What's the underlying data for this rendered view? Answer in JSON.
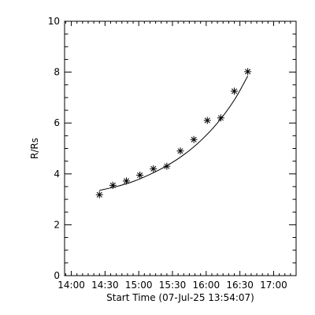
{
  "chart_data": {
    "type": "scatter",
    "title": "",
    "xlabel": "Start Time (07-Jul-25 13:54:07)",
    "ylabel": "R/Rs",
    "x_unit": "hours",
    "xlim": [
      "13:54",
      "17:20"
    ],
    "ylim": [
      0,
      10
    ],
    "x_ticks": [
      "14:00",
      "14:30",
      "15:00",
      "15:30",
      "16:00",
      "16:30",
      "17:00"
    ],
    "y_ticks": [
      "0",
      "2",
      "4",
      "6",
      "8",
      "10"
    ],
    "grid": false,
    "marker": "asterisk",
    "series": [
      {
        "points": [
          {
            "x": "14:25",
            "y": 3.18
          },
          {
            "x": "14:37",
            "y": 3.55
          },
          {
            "x": "14:49",
            "y": 3.72
          },
          {
            "x": "15:01",
            "y": 3.95
          },
          {
            "x": "15:13",
            "y": 4.2
          },
          {
            "x": "15:25",
            "y": 4.3
          },
          {
            "x": "15:37",
            "y": 4.9
          },
          {
            "x": "15:49",
            "y": 5.35
          },
          {
            "x": "16:01",
            "y": 6.1
          },
          {
            "x": "16:13",
            "y": 6.2
          },
          {
            "x": "16:25",
            "y": 7.25
          },
          {
            "x": "16:37",
            "y": 8.02
          }
        ]
      }
    ],
    "fit_curve": {
      "points": [
        {
          "x": "14:25",
          "y": 3.35
        },
        {
          "x": "14:40",
          "y": 3.5
        },
        {
          "x": "14:55",
          "y": 3.7
        },
        {
          "x": "15:10",
          "y": 3.98
        },
        {
          "x": "15:25",
          "y": 4.32
        },
        {
          "x": "15:40",
          "y": 4.75
        },
        {
          "x": "15:55",
          "y": 5.3
        },
        {
          "x": "16:10",
          "y": 6.0
        },
        {
          "x": "16:25",
          "y": 6.9
        },
        {
          "x": "16:37",
          "y": 7.85
        }
      ]
    }
  }
}
